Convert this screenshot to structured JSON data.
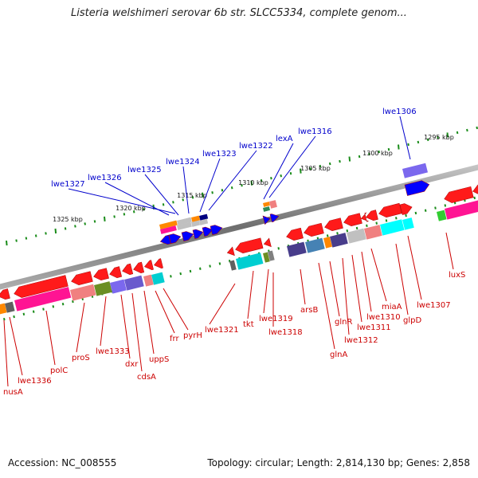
{
  "title": "Listeria welshimeri serovar 6b str. SLCC5334, complete genom...",
  "footer": {
    "accession": "Accession: NC_008555",
    "summary": "Topology: circular; Length: 2,814,130 bp; Genes: 2,858"
  },
  "scale_labels": [
    "1325 kbp",
    "1320 kbp",
    "1315 kbp",
    "1310 kbp",
    "1305 kbp",
    "1300 kbp",
    "1295 kbp"
  ],
  "colors": {
    "backbone": "#808080",
    "forward_gene": "#ff1a1a",
    "reverse_gene": "#0000ff",
    "tick": "#1a8c1a",
    "label_blue": "#0000cc",
    "label_red": "#cc0000"
  },
  "genes_top": [
    "lwe1327",
    "lwe1326",
    "lwe1325",
    "lwe1324",
    "lwe1323",
    "lwe1322",
    "lexA",
    "lwe1316",
    "lwe1306"
  ],
  "genes_bottom": [
    "nusA",
    "lwe1336",
    "polC",
    "proS",
    "lwe1333",
    "dxr",
    "cdsA",
    "uppS",
    "frr",
    "pyrH",
    "lwe1321",
    "tkt",
    "lwe1319",
    "lwe1318",
    "arsB",
    "glnA",
    "glnR",
    "lwe1312",
    "lwe1311",
    "lwe1310",
    "miaA",
    "glpD",
    "lwe1307",
    "luxS"
  ]
}
